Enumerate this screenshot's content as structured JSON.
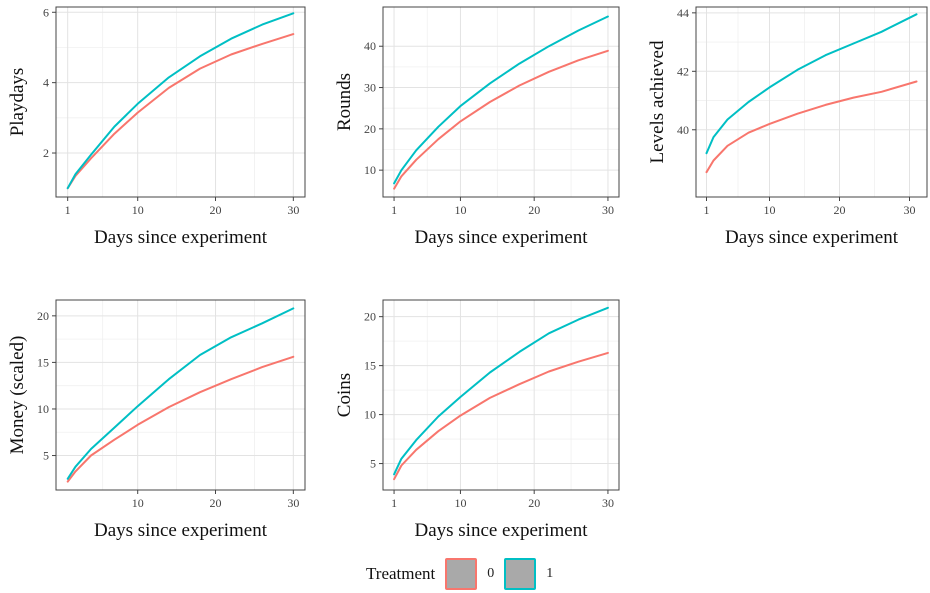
{
  "legend": {
    "title": "Treatment",
    "entries": [
      {
        "label": "0",
        "color": "#F8766D"
      },
      {
        "label": "1",
        "color": "#00BFC4"
      }
    ]
  },
  "chart_data": [
    {
      "type": "line",
      "xlabel": "Days since experiment",
      "ylabel": "Playdays",
      "xlim": [
        -0.5,
        31.5
      ],
      "ylim": [
        0.75,
        6.15
      ],
      "xticks": [
        1,
        10,
        20,
        30
      ],
      "yticks": [
        2,
        4,
        6
      ],
      "grid": true,
      "legend": "bottom",
      "series": [
        {
          "name": "0",
          "color": "#F8766D",
          "x": [
            1,
            2,
            4,
            7,
            10,
            14,
            18,
            22,
            26,
            30
          ],
          "y": [
            1.0,
            1.35,
            1.85,
            2.55,
            3.15,
            3.85,
            4.4,
            4.8,
            5.1,
            5.38
          ]
        },
        {
          "name": "1",
          "color": "#00BFC4",
          "x": [
            1,
            2,
            4,
            7,
            10,
            14,
            18,
            22,
            26,
            30
          ],
          "y": [
            1.0,
            1.4,
            1.95,
            2.75,
            3.4,
            4.15,
            4.75,
            5.25,
            5.65,
            5.97
          ]
        }
      ]
    },
    {
      "type": "line",
      "xlabel": "Days since experiment",
      "ylabel": "Rounds",
      "xlim": [
        -0.5,
        31.5
      ],
      "ylim": [
        3.5,
        49.5
      ],
      "xticks": [
        1,
        10,
        20,
        30
      ],
      "yticks": [
        10,
        20,
        30,
        40
      ],
      "grid": true,
      "legend": "bottom",
      "series": [
        {
          "name": "0",
          "color": "#F8766D",
          "x": [
            1,
            2,
            4,
            7,
            10,
            14,
            18,
            22,
            26,
            30
          ],
          "y": [
            5.5,
            8.5,
            12.5,
            17.5,
            21.8,
            26.5,
            30.5,
            33.8,
            36.6,
            38.9
          ]
        },
        {
          "name": "1",
          "color": "#00BFC4",
          "x": [
            1,
            2,
            4,
            7,
            10,
            14,
            18,
            22,
            26,
            30
          ],
          "y": [
            6.8,
            10,
            14.8,
            20.5,
            25.5,
            31,
            35.8,
            40,
            43.8,
            47.2
          ]
        }
      ]
    },
    {
      "type": "line",
      "xlabel": "Days since experiment",
      "ylabel": "Levels achieved",
      "xlim": [
        -0.5,
        32.5
      ],
      "ylim": [
        37.7,
        44.2
      ],
      "xticks": [
        1,
        10,
        20,
        30
      ],
      "yticks": [
        40,
        42,
        44
      ],
      "grid": true,
      "legend": "bottom",
      "series": [
        {
          "name": "0",
          "color": "#F8766D",
          "x": [
            1,
            2,
            4,
            7,
            10,
            14,
            18,
            22,
            26,
            31
          ],
          "y": [
            38.55,
            38.95,
            39.45,
            39.9,
            40.2,
            40.55,
            40.85,
            41.1,
            41.3,
            41.65
          ]
        },
        {
          "name": "1",
          "color": "#00BFC4",
          "x": [
            1,
            2,
            4,
            7,
            10,
            14,
            18,
            22,
            26,
            31
          ],
          "y": [
            39.2,
            39.75,
            40.35,
            40.95,
            41.45,
            42.05,
            42.55,
            42.95,
            43.35,
            43.95
          ]
        }
      ]
    },
    {
      "type": "line",
      "xlabel": "Days since experiment",
      "ylabel": "Money (scaled)",
      "xlim": [
        -0.5,
        31.5
      ],
      "ylim": [
        1.3,
        21.7
      ],
      "xticks": [
        10,
        20,
        30
      ],
      "yticks": [
        5,
        10,
        15,
        20
      ],
      "grid": true,
      "legend": "bottom",
      "series": [
        {
          "name": "0",
          "color": "#F8766D",
          "x": [
            1,
            2,
            4,
            7,
            10,
            14,
            18,
            22,
            26,
            30
          ],
          "y": [
            2.2,
            3.3,
            5.0,
            6.7,
            8.3,
            10.2,
            11.8,
            13.2,
            14.5,
            15.6
          ]
        },
        {
          "name": "1",
          "color": "#00BFC4",
          "x": [
            1,
            2,
            4,
            7,
            10,
            14,
            18,
            22,
            26,
            30
          ],
          "y": [
            2.5,
            3.8,
            5.7,
            8.0,
            10.3,
            13.2,
            15.8,
            17.7,
            19.2,
            20.8
          ]
        }
      ]
    },
    {
      "type": "line",
      "xlabel": "Days since experiment",
      "ylabel": "Coins",
      "xlim": [
        -0.5,
        31.5
      ],
      "ylim": [
        2.3,
        21.7
      ],
      "xticks": [
        1,
        10,
        20,
        30
      ],
      "yticks": [
        5,
        10,
        15,
        20
      ],
      "grid": true,
      "legend": "bottom",
      "series": [
        {
          "name": "0",
          "color": "#F8766D",
          "x": [
            1,
            2,
            4,
            7,
            10,
            14,
            18,
            22,
            26,
            30
          ],
          "y": [
            3.4,
            4.8,
            6.4,
            8.3,
            9.9,
            11.7,
            13.1,
            14.4,
            15.4,
            16.3
          ]
        },
        {
          "name": "1",
          "color": "#00BFC4",
          "x": [
            1,
            2,
            4,
            7,
            10,
            14,
            18,
            22,
            26,
            30
          ],
          "y": [
            3.9,
            5.5,
            7.4,
            9.8,
            11.8,
            14.3,
            16.4,
            18.3,
            19.7,
            20.9
          ]
        }
      ]
    }
  ]
}
